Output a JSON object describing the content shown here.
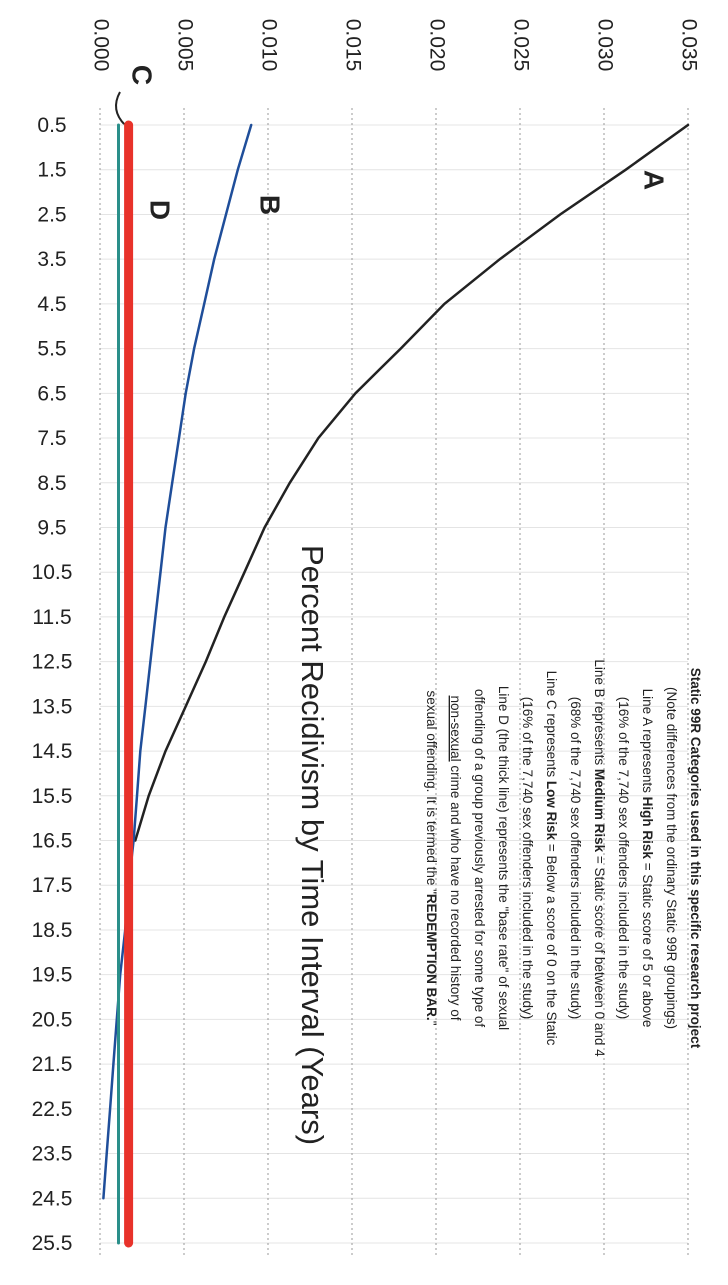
{
  "chart_data": {
    "type": "line",
    "title": "Percent Recidivism by Time Interval (Years)",
    "categories": [
      "0.5",
      "1.5",
      "2.5",
      "3.5",
      "4.5",
      "5.5",
      "6.5",
      "7.5",
      "8.5",
      "9.5",
      "10.5",
      "11.5",
      "12.5",
      "13.5",
      "14.5",
      "15.5",
      "16.5",
      "17.5",
      "18.5",
      "19.5",
      "20.5",
      "21.5",
      "22.5",
      "23.5",
      "24.5",
      "25.5"
    ],
    "series": [
      {
        "name": "A",
        "color": "#222222",
        "width": 2.5,
        "values": [
          0.035,
          0.0313,
          0.0274,
          0.0238,
          0.0205,
          0.0179,
          0.0152,
          0.013,
          0.0113,
          0.0098,
          0.0086,
          0.0074,
          0.0063,
          0.0051,
          0.0039,
          0.0029,
          0.0021,
          null,
          null,
          null,
          null,
          null,
          null,
          null,
          null,
          null
        ]
      },
      {
        "name": "B",
        "color": "#1f4e9a",
        "width": 2.5,
        "values": [
          0.009,
          0.0082,
          0.0075,
          0.0068,
          0.0062,
          0.0056,
          0.0051,
          0.0047,
          0.0043,
          0.0039,
          0.0036,
          0.0033,
          0.003,
          0.0027,
          0.0024,
          0.0022,
          0.002,
          0.0017,
          0.0015,
          0.0012,
          0.001,
          0.0008,
          0.0006,
          0.0004,
          0.0002,
          null
        ]
      },
      {
        "name": "C",
        "color": "#2a8f8a",
        "width": 3,
        "values": [
          0.0011,
          0.0011,
          0.0011,
          0.0011,
          0.0011,
          0.0011,
          0.0011,
          0.0011,
          0.0011,
          0.0011,
          0.0011,
          0.0011,
          0.0011,
          0.0011,
          0.0011,
          0.0011,
          0.0011,
          0.0011,
          0.0011,
          0.0011,
          0.0011,
          0.0011,
          0.0011,
          0.0011,
          0.0011,
          0.0011
        ]
      },
      {
        "name": "D",
        "color": "#e8322a",
        "width": 9,
        "values": [
          0.0017,
          0.0017,
          0.0017,
          0.0017,
          0.0017,
          0.0017,
          0.0017,
          0.0017,
          0.0017,
          0.0017,
          0.0017,
          0.0017,
          0.0017,
          0.0017,
          0.0017,
          0.0017,
          0.0017,
          0.0017,
          0.0017,
          0.0017,
          0.0017,
          0.0017,
          0.0017,
          0.0017,
          0.0017,
          0.0017
        ]
      }
    ],
    "ylim": [
      0,
      0.035
    ],
    "yticks": [
      {
        "value": 0,
        "label": "0.000"
      },
      {
        "value": 0.005,
        "label": "0.005"
      },
      {
        "value": 0.01,
        "label": "0.010"
      },
      {
        "value": 0.015,
        "label": "0.015"
      },
      {
        "value": 0.02,
        "label": "0.020"
      },
      {
        "value": 0.025,
        "label": "0.025"
      },
      {
        "value": 0.03,
        "label": "0.030"
      },
      {
        "value": 0.035,
        "label": "0.035"
      }
    ],
    "grid": true,
    "legend": [
      [
        {
          "text": "Static 99R Categories used in this specific research project",
          "weight": "bold"
        }
      ],
      [
        {
          "text": "(Note differences from the ordinary Static 99R groupings)"
        }
      ],
      [
        {
          "text": "Line A represents "
        },
        {
          "text": "High Risk",
          "weight": "bold"
        },
        {
          "text": " = Static score of 5 or above"
        }
      ],
      [
        {
          "text": "(16% of the 7,740 sex offenders included in the study)"
        }
      ],
      [
        {
          "text": "Line B represents "
        },
        {
          "text": "Medium Risk",
          "weight": "bold"
        },
        {
          "text": " = Static score of between 0 and 4"
        }
      ],
      [
        {
          "text": "(68% of the 7,740 sex offenders included in the study)"
        }
      ],
      [
        {
          "text": "Line C represents "
        },
        {
          "text": "Low Risk",
          "weight": "bold"
        },
        {
          "text": " = Below a score of 0 on the Static"
        }
      ],
      [
        {
          "text": "(16% of the 7,740 sex offenders included in the study)"
        }
      ],
      [
        {
          "text": "Line D (the thick line) represents the \"base rate\" of sexual"
        }
      ],
      [
        {
          "text": "offending of a group previously arrested for some type of"
        }
      ],
      [
        {
          "text": "non-sexual",
          "underline": true
        },
        {
          "text": " crime and who have no recorded history of"
        }
      ],
      [
        {
          "text": "sexual offending.  It is termed the \""
        },
        {
          "text": "REDEMPTION BAR.",
          "weight": "bold"
        },
        {
          "text": "\""
        }
      ]
    ]
  }
}
